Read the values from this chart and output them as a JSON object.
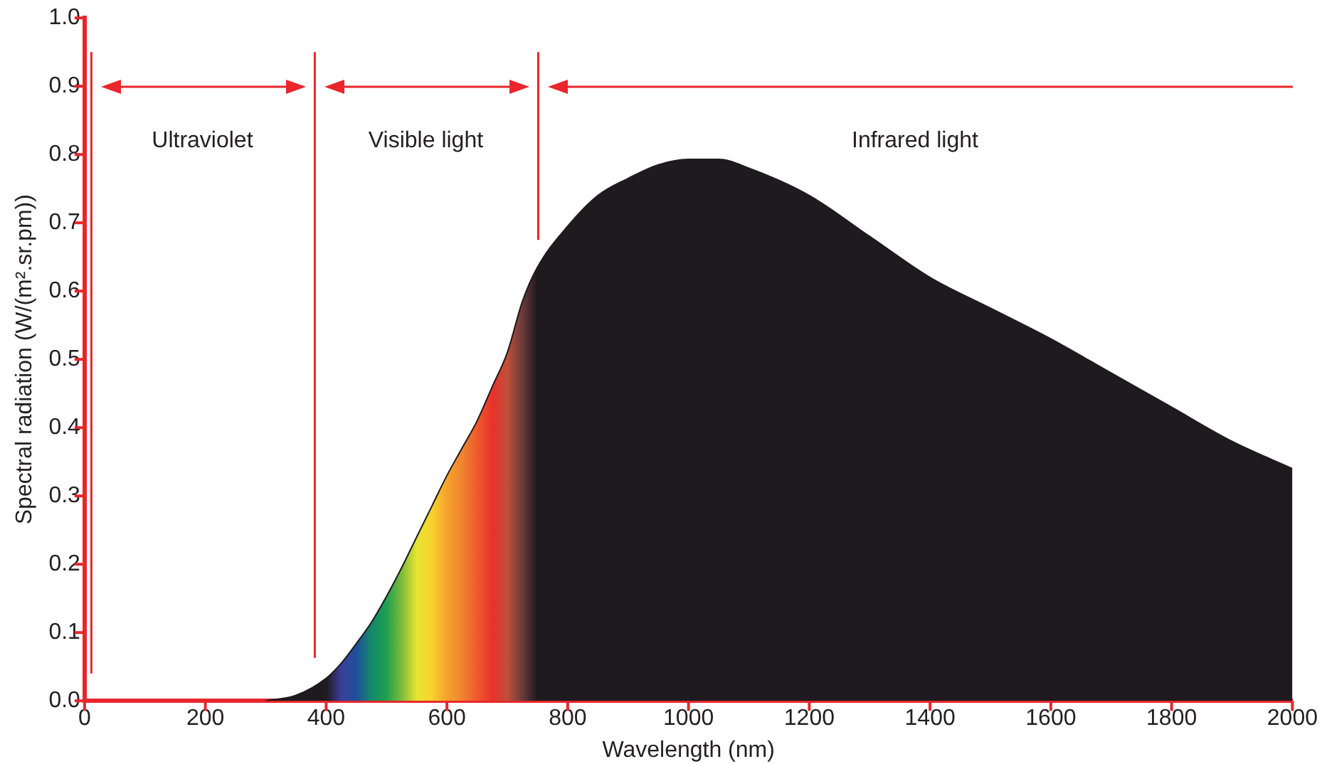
{
  "chart_data": {
    "type": "area",
    "xlabel": "Wavelength (nm)",
    "ylabel": "Spectral radiation (W/(m².sr.pm))",
    "x": [
      300,
      350,
      400,
      425,
      450,
      475,
      500,
      525,
      550,
      575,
      600,
      625,
      650,
      675,
      700,
      725,
      750,
      800,
      850,
      900,
      950,
      1000,
      1050,
      1100,
      1200,
      1300,
      1400,
      1500,
      1600,
      1700,
      1800,
      1900,
      2000
    ],
    "series": [
      {
        "color": "#1e1a1d",
        "values": [
          0,
          0.008,
          0.033,
          0.055,
          0.084,
          0.115,
          0.153,
          0.195,
          0.24,
          0.285,
          0.33,
          0.37,
          0.41,
          0.46,
          0.51,
          0.585,
          0.635,
          0.695,
          0.74,
          0.765,
          0.785,
          0.793,
          0.793,
          0.78,
          0.74,
          0.68,
          0.62,
          0.575,
          0.53,
          0.48,
          0.43,
          0.38,
          0.34
        ],
        "colors": [
          "#1e1a1d",
          "#1e1a1d",
          "#1e1a1d",
          "#3a3f9a",
          "#1f4f9c",
          "#13886a",
          "#1fa050",
          "#7dbb3a",
          "#e8e433",
          "#f7d22e",
          "#f5a22e",
          "#f08530",
          "#ee5a2e",
          "#e8322b",
          "#c0503a",
          "#6a3a3a",
          "#1e1a1d",
          "#1e1a1d",
          "#1e1a1d",
          "#1e1a1d",
          "#1e1a1d",
          "#1e1a1d",
          "#1e1a1d",
          "#1e1a1d",
          "#1e1a1d",
          "#1e1a1d",
          "#1e1a1d",
          "#1e1a1d",
          "#1e1a1d",
          "#1e1a1d",
          "#1e1a1d",
          "#1e1a1d",
          "#1e1a1d"
        ]
      }
    ],
    "xlim": [
      0,
      2000
    ],
    "xticks": [
      0,
      200,
      400,
      600,
      800,
      1000,
      1200,
      1400,
      1600,
      1800,
      2000
    ],
    "ylim": [
      0,
      1
    ],
    "yticks": [
      {
        "value": 0,
        "label": "0.0"
      },
      0.1,
      0.2,
      0.3,
      0.4,
      0.5,
      0.6,
      0.7,
      0.8,
      0.9,
      {
        "value": 1,
        "label": "1.0"
      }
    ],
    "ref_lines": [
      {
        "axis": "x",
        "value": 10,
        "color": "#e8262b"
      },
      {
        "axis": "x",
        "value": 380,
        "color": "#e8262b"
      },
      {
        "axis": "x",
        "value": 750,
        "color": "#e8262b"
      }
    ],
    "annotations": [
      "Ultraviolet",
      "Visible light",
      "Infrared light"
    ],
    "grid": false,
    "legend": false
  }
}
